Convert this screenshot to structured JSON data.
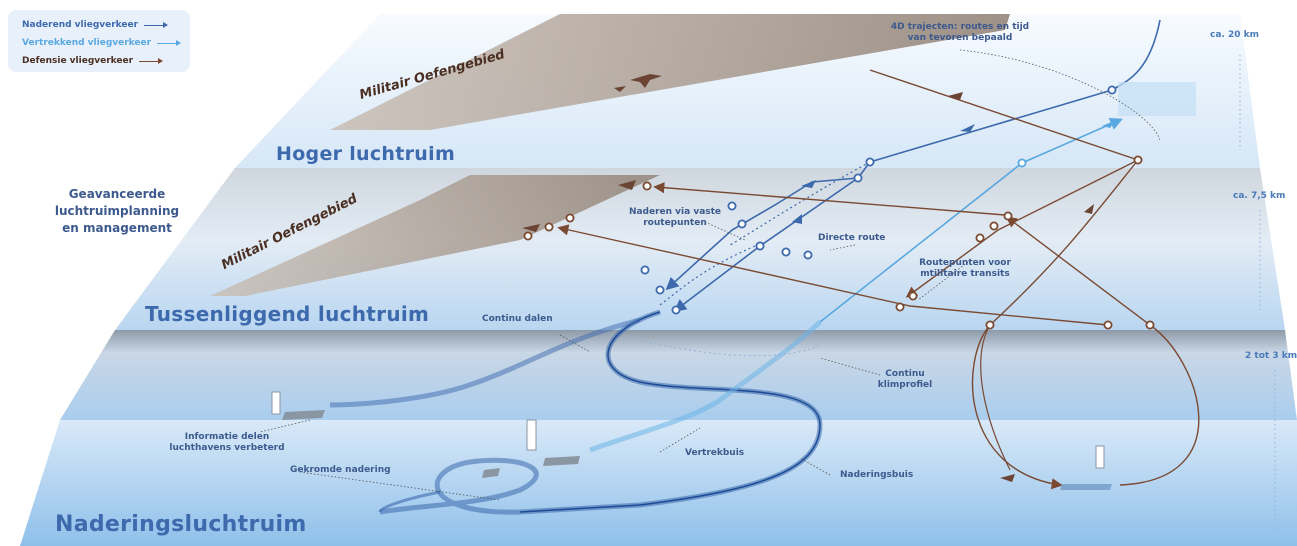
{
  "legend": {
    "arriving": "Naderend vliegverkeer",
    "departing": "Vertrekkend vliegverkeer",
    "defense": "Defensie vliegverkeer"
  },
  "layers": {
    "upper": "Hoger luchtruim",
    "middle": "Tussenliggend luchtruim",
    "approach": "Naderingsluchtruim"
  },
  "military": {
    "upper": "Militair Oefengebied",
    "middle": "Militair Oefengebied"
  },
  "altitudes": {
    "top": "ca. 20 km",
    "mid": "ca. 7,5 km",
    "low": "2 tot 3 km"
  },
  "side_label": [
    "Geavanceerde",
    "luchtruimplanning",
    "en management"
  ],
  "annotations": {
    "trajectories": [
      "4D trajecten: routes en tijd",
      "van tevoren bepaald"
    ],
    "fixed_waypoints": [
      "Naderen via vaste",
      "routepunten"
    ],
    "direct_route": "Directe route",
    "military_waypoints": [
      "Routepunten voor",
      "mtilitaire transits"
    ],
    "continuous_descent": "Continu dalen",
    "continuous_climb": [
      "Continu",
      "klimprofiel"
    ],
    "info_sharing": [
      "Informatie delen",
      "luchthavens verbeterd"
    ],
    "curved_approach": "Gekromde nadering",
    "departure_tube": "Vertrekbuis",
    "approach_tube": "Naderingsbuis"
  },
  "colors": {
    "arriving": "#3d69ad",
    "departing": "#5aa8e0",
    "defense": "#7a4a32",
    "layer_text": "#3d69ad"
  }
}
